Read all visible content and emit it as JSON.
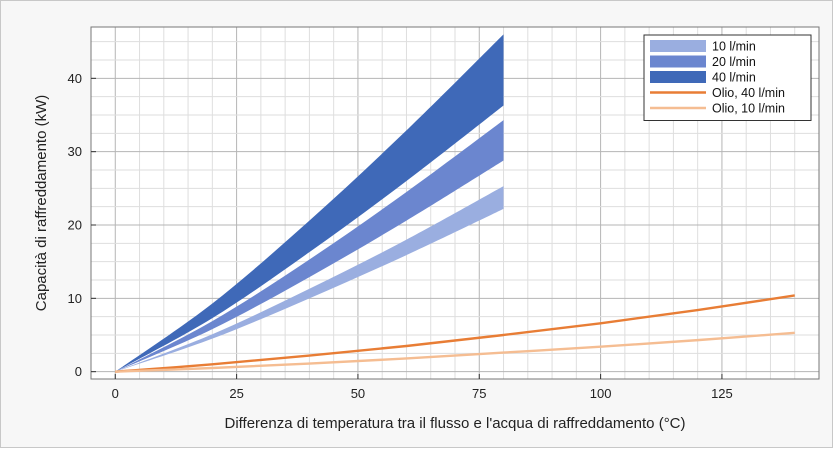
{
  "chart_data": {
    "type": "area",
    "title": "",
    "xlabel": "Differenza di temperatura tra il flusso e l'acqua di raffreddamento (°C)",
    "ylabel": "Capacità di raffreddamento (kW)",
    "xlim": [
      -5,
      145
    ],
    "ylim": [
      -1,
      47
    ],
    "x_ticks": [
      0,
      25,
      50,
      75,
      100,
      125
    ],
    "y_ticks": [
      0,
      10,
      20,
      30,
      40
    ],
    "grid": true,
    "legend_position": "top-right",
    "bands": [
      {
        "name": "10 l/min",
        "color": "#9aaee0",
        "x": [
          0,
          20,
          40,
          60,
          80
        ],
        "lower": [
          0,
          4.5,
          10.0,
          15.9,
          22.2
        ],
        "upper": [
          0,
          5.1,
          11.3,
          18.0,
          25.3
        ]
      },
      {
        "name": "20 l/min",
        "color": "#6b86cf",
        "x": [
          0,
          20,
          40,
          60,
          80
        ],
        "lower": [
          0,
          5.8,
          12.9,
          20.6,
          28.8
        ],
        "upper": [
          0,
          6.9,
          15.3,
          24.5,
          34.3
        ]
      },
      {
        "name": "40 l/min",
        "color": "#3f69b8",
        "x": [
          0,
          20,
          40,
          60,
          80
        ],
        "lower": [
          0,
          7.3,
          16.3,
          26.0,
          36.3
        ],
        "upper": [
          0,
          9.3,
          20.6,
          32.9,
          46.0
        ]
      }
    ],
    "series": [
      {
        "name": "Olio, 40 l/min",
        "color": "#e87d35",
        "x": [
          0,
          20,
          40,
          60,
          80,
          100,
          120,
          140
        ],
        "values": [
          0,
          1.0,
          2.2,
          3.5,
          5.0,
          6.6,
          8.4,
          10.4
        ]
      },
      {
        "name": "Olio, 10 l/min",
        "color": "#f5bd92",
        "x": [
          0,
          20,
          40,
          60,
          80,
          100,
          120,
          140
        ],
        "values": [
          0,
          0.5,
          1.1,
          1.8,
          2.6,
          3.4,
          4.3,
          5.3
        ]
      }
    ]
  }
}
